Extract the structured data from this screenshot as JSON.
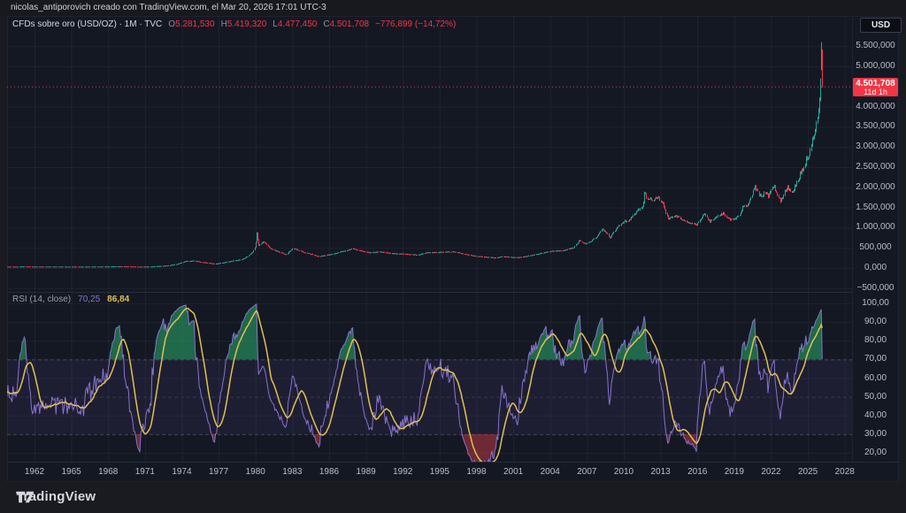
{
  "header": {
    "credit": "nicolas_antiporovich creado con TradingView.com, el Mar 20, 2026 17:01 UTC-3"
  },
  "toolbar": {
    "currency_button": "USD"
  },
  "main_legend": {
    "title": "CFDs sobre oro (USD/OZ) · 1M · TVC",
    "o_label": "O",
    "o": "5.281,530",
    "h_label": "H",
    "h": "5.419,320",
    "l_label": "L",
    "l": "4.477,450",
    "c_label": "C",
    "c": "4.501,708",
    "change": "−776,899 (−14,72%)"
  },
  "rsi_legend": {
    "title": "RSI (14, close)",
    "rsi_value": "70,25",
    "ma_value": "86,84"
  },
  "price_label": {
    "price": "4.501,708",
    "countdown": "11d 1h"
  },
  "footer": {
    "brand": "TradingView"
  },
  "colors": {
    "up": "#26a69a",
    "down": "#f23645",
    "accent_red": "#f23645",
    "rsi_line": "#8673cf",
    "rsi_ma": "#e0c14f",
    "band": "rgba(126,87,194,0.10)",
    "overbought_fill": "rgba(40,160,100,0.60)",
    "oversold_fill": "rgba(200,60,70,0.50)",
    "grid": "rgba(240,243,250,0.05)",
    "level_dash": "#6b6f7b"
  },
  "chart_data": {
    "type": "candlestick",
    "title": "CFDs sobre oro (USD/OZ) · 1M · TVC",
    "symbol": "CFDs sobre oro (USD/OZ)",
    "interval": "1M",
    "exchange": "TVC",
    "current_price": 4501.708,
    "ohlc_current": {
      "open": 5281.53,
      "high": 5419.32,
      "low": 4477.45,
      "close": 4501.708,
      "change": -776.899,
      "change_pct": -14.72
    },
    "prev_candle": {
      "open": 4952,
      "high": 5600,
      "low": 4905,
      "close": 5278.6
    },
    "price_axis_ticks": [
      {
        "v": 5500,
        "label": "5.500,000"
      },
      {
        "v": 5000,
        "label": "5.000,000"
      },
      {
        "v": 4000,
        "label": "4.000,000"
      },
      {
        "v": 3500,
        "label": "3.500,000"
      },
      {
        "v": 3000,
        "label": "3.000,000"
      },
      {
        "v": 2500,
        "label": "2.500,000"
      },
      {
        "v": 2000,
        "label": "2.000,000"
      },
      {
        "v": 1500,
        "label": "1.500,000"
      },
      {
        "v": 1000,
        "label": "1.000,000"
      },
      {
        "v": 500,
        "label": "500,000"
      },
      {
        "v": 0,
        "label": "0,000"
      },
      {
        "v": -500,
        "label": "−500,000"
      }
    ],
    "years": [
      1962,
      1965,
      1968,
      1971,
      1974,
      1977,
      1980,
      1983,
      1986,
      1989,
      1992,
      1995,
      1998,
      2001,
      2004,
      2007,
      2010,
      2013,
      2016,
      2019,
      2022,
      2025,
      2028
    ],
    "anchors": [
      [
        1957.5,
        35
      ],
      [
        1960.5,
        35
      ],
      [
        1961.2,
        40
      ],
      [
        1961.8,
        36
      ],
      [
        1966,
        35
      ],
      [
        1968,
        37
      ],
      [
        1968.8,
        43
      ],
      [
        1969.5,
        41
      ],
      [
        1970.5,
        35
      ],
      [
        1971.5,
        37
      ],
      [
        1972,
        46
      ],
      [
        1972.9,
        64
      ],
      [
        1973.6,
        100
      ],
      [
        1974.3,
        168
      ],
      [
        1974.95,
        184
      ],
      [
        1975.7,
        140
      ],
      [
        1976.7,
        106
      ],
      [
        1977.8,
        160
      ],
      [
        1978.8,
        210
      ],
      [
        1979.3,
        280
      ],
      [
        1979.75,
        390
      ],
      [
        1979.95,
        510
      ],
      [
        1980.08,
        856
      ],
      [
        1980.25,
        560
      ],
      [
        1980.7,
        660
      ],
      [
        1981.1,
        500
      ],
      [
        1981.7,
        410
      ],
      [
        1982.5,
        340
      ],
      [
        1983.05,
        500
      ],
      [
        1983.6,
        415
      ],
      [
        1984.1,
        385
      ],
      [
        1985.15,
        290
      ],
      [
        1986.2,
        345
      ],
      [
        1987.9,
        480
      ],
      [
        1988.5,
        435
      ],
      [
        1989.2,
        385
      ],
      [
        1990.1,
        405
      ],
      [
        1991,
        365
      ],
      [
        1993.2,
        330
      ],
      [
        1994,
        385
      ],
      [
        1996.1,
        410
      ],
      [
        1997,
        350
      ],
      [
        1998,
        295
      ],
      [
        1999.6,
        256
      ],
      [
        2000.1,
        290
      ],
      [
        2001.25,
        262
      ],
      [
        2002,
        290
      ],
      [
        2003,
        350
      ],
      [
        2004,
        415
      ],
      [
        2005,
        430
      ],
      [
        2005.9,
        510
      ],
      [
        2006.4,
        690
      ],
      [
        2006.8,
        600
      ],
      [
        2007.3,
        660
      ],
      [
        2007.8,
        790
      ],
      [
        2008.2,
        960
      ],
      [
        2008.6,
        880
      ],
      [
        2008.85,
        740
      ],
      [
        2009.2,
        930
      ],
      [
        2009.95,
        1150
      ],
      [
        2010.5,
        1200
      ],
      [
        2011,
        1390
      ],
      [
        2011.55,
        1560
      ],
      [
        2011.67,
        1880
      ],
      [
        2011.9,
        1730
      ],
      [
        2012.15,
        1690
      ],
      [
        2012.75,
        1760
      ],
      [
        2013.2,
        1600
      ],
      [
        2013.55,
        1230
      ],
      [
        2014.2,
        1310
      ],
      [
        2014.85,
        1180
      ],
      [
        2015.9,
        1065
      ],
      [
        2016.55,
        1360
      ],
      [
        2016.95,
        1150
      ],
      [
        2017.7,
        1290
      ],
      [
        2018.1,
        1340
      ],
      [
        2018.65,
        1185
      ],
      [
        2019.4,
        1300
      ],
      [
        2019.7,
        1520
      ],
      [
        2020.2,
        1590
      ],
      [
        2020.6,
        2030
      ],
      [
        2020.9,
        1880
      ],
      [
        2021.2,
        1740
      ],
      [
        2021.45,
        1900
      ],
      [
        2021.75,
        1790
      ],
      [
        2022.2,
        2030
      ],
      [
        2022.45,
        1850
      ],
      [
        2022.8,
        1645
      ],
      [
        2023.1,
        1920
      ],
      [
        2023.35,
        2000
      ],
      [
        2023.75,
        1870
      ],
      [
        2024,
        2060
      ],
      [
        2024.3,
        2300
      ],
      [
        2024.6,
        2450
      ],
      [
        2024.85,
        2720
      ],
      [
        2025.05,
        2800
      ],
      [
        2025.3,
        3200
      ],
      [
        2025.55,
        3380
      ],
      [
        2025.75,
        3800
      ],
      [
        2025.92,
        4250
      ],
      [
        2026,
        4700
      ],
      [
        2026.08,
        5278
      ],
      [
        2026.17,
        4501.7
      ]
    ],
    "rsi": {
      "period_label": "RSI (14, close)",
      "last": 70.25,
      "ma_last": 86.84,
      "overbought": 70,
      "middle": 50,
      "oversold": 30,
      "range": [
        20,
        100
      ],
      "axis_ticks": [
        {
          "v": 100,
          "label": "100,00"
        },
        {
          "v": 90,
          "label": "90,00"
        },
        {
          "v": 80,
          "label": "80,00"
        },
        {
          "v": 70,
          "label": "70,00"
        },
        {
          "v": 60,
          "label": "60,00"
        },
        {
          "v": 50,
          "label": "50,00"
        },
        {
          "v": 40,
          "label": "40,00"
        },
        {
          "v": 30,
          "label": "30,00"
        },
        {
          "v": 20,
          "label": "20,00"
        }
      ]
    }
  }
}
